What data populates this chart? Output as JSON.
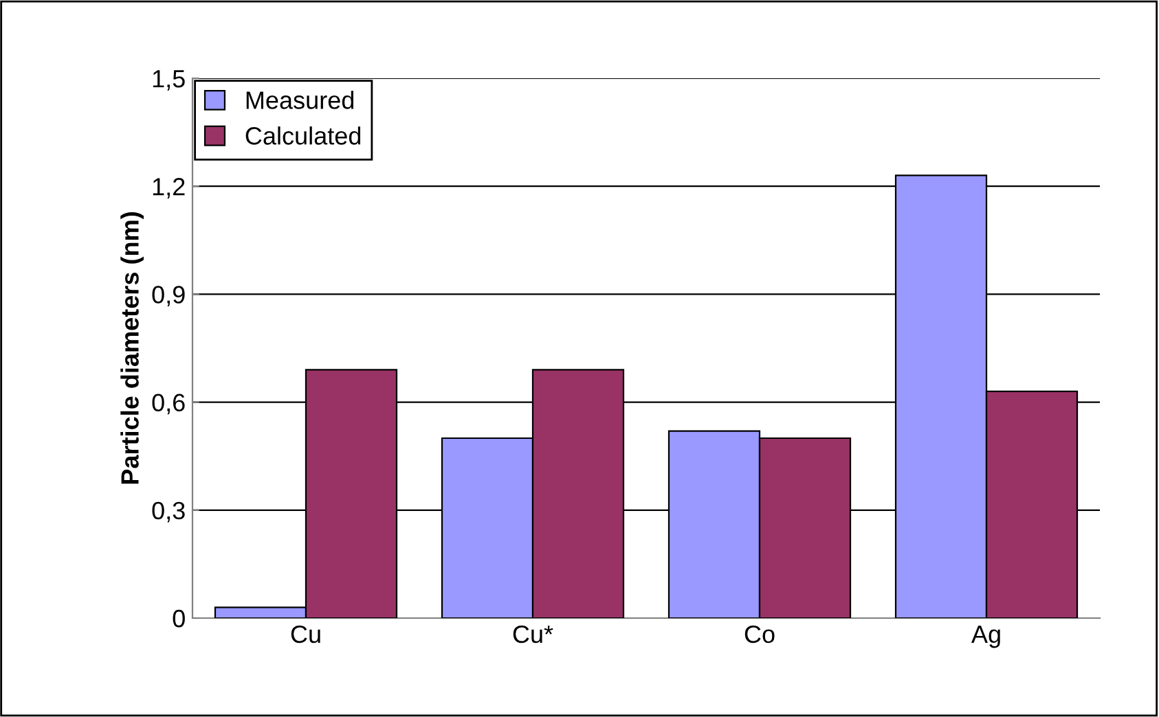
{
  "chart_data": {
    "type": "bar",
    "ylabel": "Particle diameters (nm)",
    "categories": [
      "Cu",
      "Cu*",
      "Co",
      "Ag"
    ],
    "series": [
      {
        "name": "Measured",
        "color": "#9999ff",
        "values": [
          0.03,
          0.5,
          0.52,
          1.23
        ]
      },
      {
        "name": "Calculated",
        "color": "#993366",
        "values": [
          0.69,
          0.69,
          0.5,
          0.63
        ]
      }
    ],
    "ylim": [
      0,
      1.5
    ],
    "yticks": [
      0,
      {
        "value": 0.3,
        "label": "0,3"
      },
      {
        "value": 0.6,
        "label": "0,6"
      },
      {
        "value": 0.9,
        "label": "0,9"
      },
      {
        "value": 1.2,
        "label": "1,2"
      },
      {
        "value": 1.5,
        "label": "1,5"
      }
    ],
    "grid": "y",
    "legend": "top left"
  }
}
